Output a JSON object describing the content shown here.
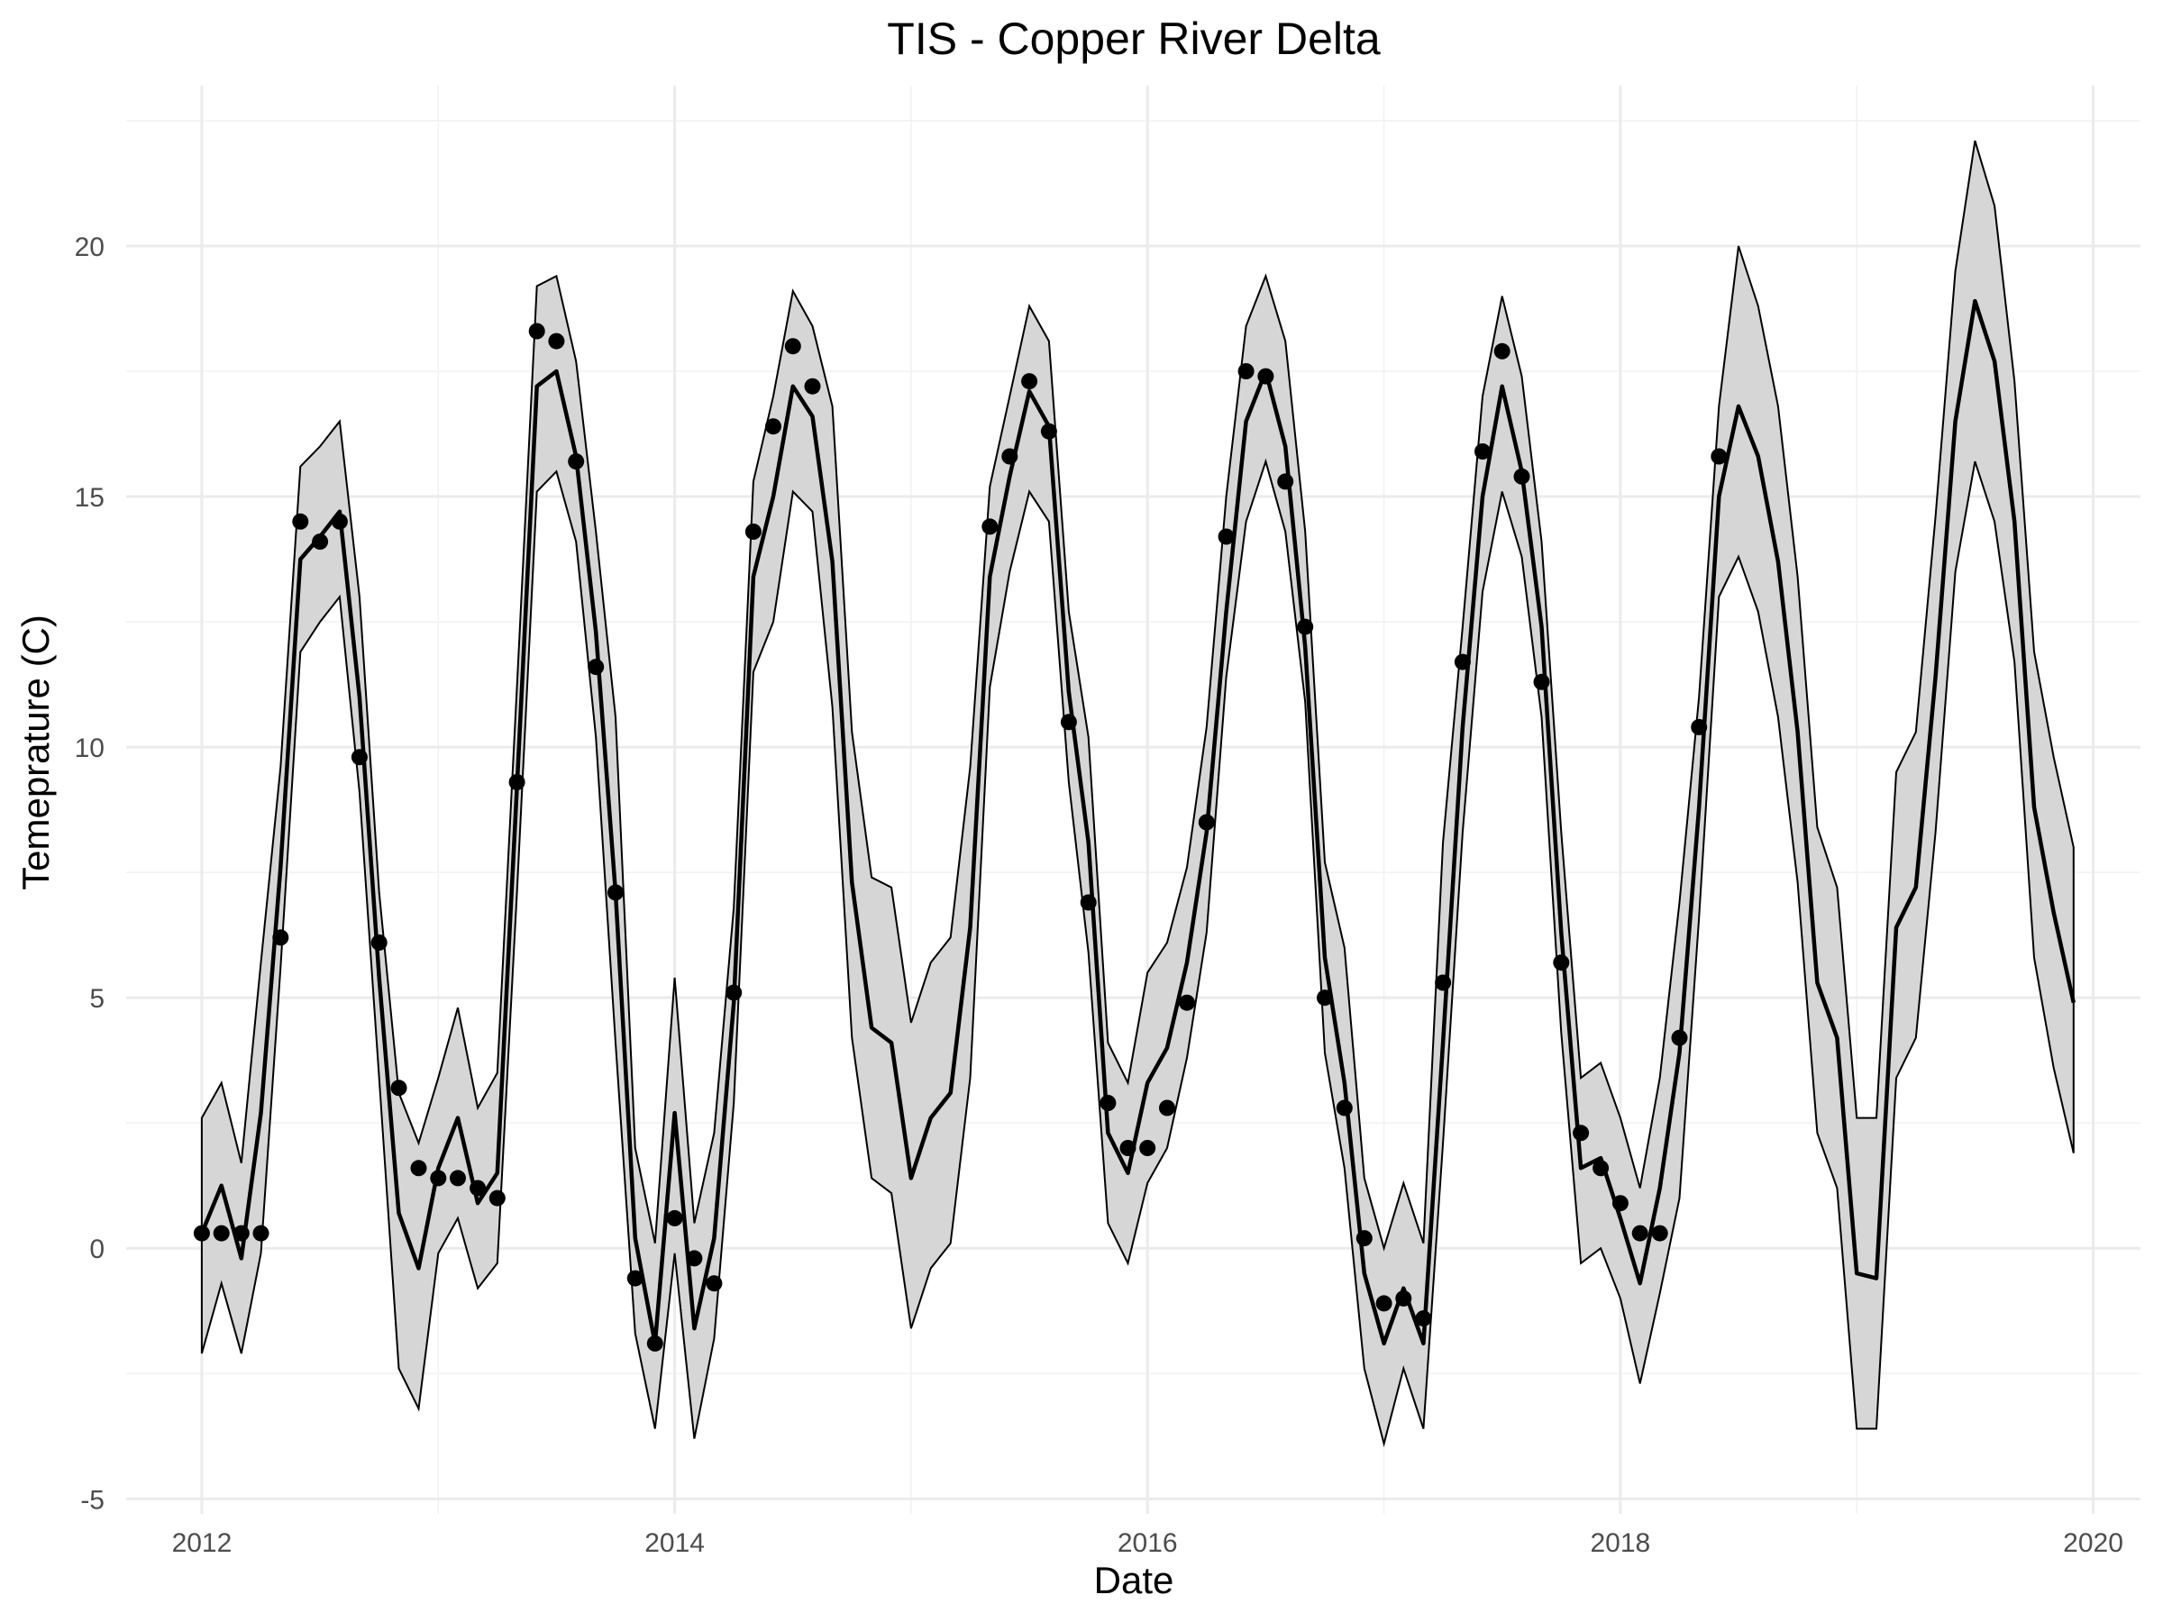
{
  "chart_data": {
    "type": "line",
    "title": "TIS - Copper River Delta",
    "xlabel": "Date",
    "ylabel": "Temeprature (C)",
    "xlim": [
      2011.68,
      2020.2
    ],
    "ylim": [
      -5.3,
      23.2
    ],
    "x_ticks": [
      {
        "value": 2012,
        "label": "2012"
      },
      {
        "value": 2014,
        "label": "2014"
      },
      {
        "value": 2016,
        "label": "2016"
      },
      {
        "value": 2018,
        "label": "2018"
      },
      {
        "value": 2020,
        "label": "2020"
      }
    ],
    "y_ticks": [
      {
        "value": -5,
        "label": "-5"
      },
      {
        "value": 0,
        "label": "0"
      },
      {
        "value": 5,
        "label": "5"
      },
      {
        "value": 10,
        "label": "10"
      },
      {
        "value": 15,
        "label": "15"
      },
      {
        "value": 20,
        "label": "20"
      }
    ],
    "grid": true,
    "legend": "none",
    "fitted_series": {
      "x": [
        2012.0,
        2012.083,
        2012.167,
        2012.25,
        2012.333,
        2012.417,
        2012.5,
        2012.583,
        2012.667,
        2012.75,
        2012.833,
        2012.917,
        2013.0,
        2013.083,
        2013.167,
        2013.25,
        2013.333,
        2013.417,
        2013.5,
        2013.583,
        2013.667,
        2013.75,
        2013.833,
        2013.917,
        2014.0,
        2014.083,
        2014.167,
        2014.25,
        2014.333,
        2014.417,
        2014.5,
        2014.583,
        2014.667,
        2014.75,
        2014.833,
        2014.917,
        2015.0,
        2015.083,
        2015.167,
        2015.25,
        2015.333,
        2015.417,
        2015.5,
        2015.583,
        2015.667,
        2015.75,
        2015.833,
        2015.917,
        2016.0,
        2016.083,
        2016.167,
        2016.25,
        2016.333,
        2016.417,
        2016.5,
        2016.583,
        2016.667,
        2016.75,
        2016.833,
        2016.917,
        2017.0,
        2017.083,
        2017.167,
        2017.25,
        2017.333,
        2017.417,
        2017.5,
        2017.583,
        2017.667,
        2017.75,
        2017.833,
        2017.917,
        2018.0,
        2018.083,
        2018.167,
        2018.25,
        2018.333,
        2018.417,
        2018.5,
        2018.583,
        2018.667,
        2018.75,
        2018.833,
        2018.917,
        2019.0,
        2019.083,
        2019.167,
        2019.25,
        2019.333,
        2019.417,
        2019.5,
        2019.583,
        2019.667,
        2019.75,
        2019.833,
        2019.917
      ],
      "mean": [
        0.3,
        1.25,
        -0.2,
        2.7,
        7.6,
        13.75,
        14.2,
        14.7,
        11.0,
        5.4,
        0.7,
        -0.4,
        1.6,
        2.6,
        0.9,
        1.5,
        9.2,
        17.2,
        17.5,
        15.8,
        12.3,
        7.1,
        0.2,
        -1.9,
        2.7,
        -1.6,
        0.2,
        4.9,
        13.4,
        15.0,
        17.2,
        16.6,
        13.7,
        7.3,
        4.4,
        4.1,
        1.4,
        2.6,
        3.1,
        6.4,
        13.4,
        15.4,
        17.1,
        16.4,
        11.1,
        8.1,
        2.3,
        1.5,
        3.3,
        4.0,
        5.7,
        8.3,
        12.7,
        16.5,
        17.5,
        16.0,
        12.0,
        5.8,
        3.3,
        -0.5,
        -1.9,
        -0.8,
        -1.9,
        4.1,
        10.4,
        15.0,
        17.2,
        15.5,
        12.4,
        6.3,
        1.6,
        1.8,
        0.6,
        -0.7,
        1.2,
        3.9,
        8.8,
        15.0,
        16.8,
        15.8,
        13.7,
        10.3,
        5.3,
        4.2,
        -0.5,
        -0.6,
        6.4,
        7.2,
        11.4,
        16.5,
        18.9,
        17.7,
        14.5,
        8.8,
        6.7,
        4.9
      ],
      "upper": [
        2.6,
        3.3,
        1.7,
        5.7,
        9.6,
        15.6,
        16.0,
        16.5,
        13.0,
        7.1,
        3.1,
        2.1,
        3.4,
        4.8,
        2.8,
        3.5,
        11.2,
        19.2,
        19.4,
        17.7,
        14.3,
        10.6,
        2.0,
        0.1,
        5.4,
        0.5,
        2.3,
        6.8,
        15.3,
        17.0,
        19.1,
        18.4,
        16.8,
        10.3,
        7.4,
        7.2,
        4.5,
        5.7,
        6.2,
        9.6,
        15.2,
        17.0,
        18.8,
        18.1,
        12.7,
        10.2,
        4.1,
        3.3,
        5.5,
        6.1,
        7.6,
        10.4,
        15.0,
        18.4,
        19.4,
        18.1,
        14.3,
        7.7,
        6.0,
        1.4,
        0.0,
        1.3,
        0.1,
        8.1,
        12.4,
        17.0,
        19.0,
        17.4,
        14.1,
        8.3,
        3.4,
        3.7,
        2.6,
        1.2,
        3.4,
        6.9,
        11.0,
        16.8,
        20.0,
        18.8,
        16.8,
        13.4,
        8.4,
        7.2,
        2.6,
        2.6,
        9.5,
        10.3,
        14.6,
        19.5,
        22.1,
        20.8,
        17.3,
        11.9,
        9.8,
        8.0
      ],
      "lower": [
        -2.1,
        -0.7,
        -2.1,
        -0.1,
        5.6,
        11.9,
        12.5,
        13.0,
        9.1,
        3.4,
        -2.4,
        -3.2,
        -0.1,
        0.6,
        -0.8,
        -0.3,
        7.1,
        15.1,
        15.5,
        14.1,
        10.2,
        4.1,
        -1.7,
        -3.6,
        -0.1,
        -3.8,
        -1.8,
        2.9,
        11.5,
        12.5,
        15.1,
        14.7,
        10.8,
        4.2,
        1.4,
        1.1,
        -1.6,
        -0.4,
        0.1,
        3.4,
        11.2,
        13.5,
        15.1,
        14.5,
        9.3,
        5.9,
        0.5,
        -0.3,
        1.3,
        2.0,
        3.8,
        6.3,
        11.4,
        14.5,
        15.7,
        14.3,
        10.9,
        3.9,
        1.6,
        -2.4,
        -3.9,
        -2.4,
        -3.6,
        2.1,
        8.3,
        13.1,
        15.1,
        13.8,
        10.6,
        4.3,
        -0.3,
        0.0,
        -1.0,
        -2.7,
        -0.9,
        1.0,
        6.6,
        13.0,
        13.8,
        12.7,
        10.6,
        7.3,
        2.3,
        1.2,
        -3.6,
        -3.6,
        3.4,
        4.2,
        8.3,
        13.5,
        15.7,
        14.5,
        11.7,
        5.8,
        3.6,
        1.9
      ]
    },
    "observations": {
      "x": [
        2012.0,
        2012.083,
        2012.167,
        2012.25,
        2012.333,
        2012.417,
        2012.5,
        2012.583,
        2012.667,
        2012.75,
        2012.833,
        2012.917,
        2013.0,
        2013.083,
        2013.167,
        2013.25,
        2013.333,
        2013.417,
        2013.5,
        2013.583,
        2013.667,
        2013.75,
        2013.833,
        2013.917,
        2014.0,
        2014.083,
        2014.167,
        2014.25,
        2014.333,
        2014.417,
        2014.5,
        2014.583,
        2015.333,
        2015.417,
        2015.5,
        2015.583,
        2015.667,
        2015.75,
        2015.833,
        2015.917,
        2016.0,
        2016.083,
        2016.167,
        2016.25,
        2016.333,
        2016.417,
        2016.5,
        2016.583,
        2016.667,
        2016.75,
        2016.833,
        2016.917,
        2017.0,
        2017.083,
        2017.167,
        2017.25,
        2017.333,
        2017.417,
        2017.5,
        2017.583,
        2017.667,
        2017.75,
        2017.833,
        2017.917,
        2018.0,
        2018.083,
        2018.167,
        2018.25,
        2018.333,
        2018.417
      ],
      "y": [
        0.3,
        0.3,
        0.3,
        0.3,
        6.2,
        14.5,
        14.1,
        14.5,
        9.8,
        6.1,
        3.2,
        1.6,
        1.4,
        1.4,
        1.2,
        1.0,
        9.3,
        18.3,
        18.1,
        15.7,
        11.6,
        7.1,
        -0.6,
        -1.9,
        0.6,
        -0.2,
        -0.7,
        5.1,
        14.3,
        16.4,
        18.0,
        17.2,
        14.4,
        15.8,
        17.3,
        16.3,
        10.5,
        6.9,
        2.9,
        2.0,
        2.0,
        2.8,
        4.9,
        8.5,
        14.2,
        17.5,
        17.4,
        15.3,
        12.4,
        5.0,
        2.8,
        0.2,
        -1.1,
        -1.0,
        -1.4,
        5.3,
        11.7,
        15.9,
        17.9,
        15.4,
        11.3,
        5.7,
        2.3,
        1.6,
        0.9,
        0.3,
        0.3,
        4.2,
        10.4,
        15.8
      ]
    }
  }
}
